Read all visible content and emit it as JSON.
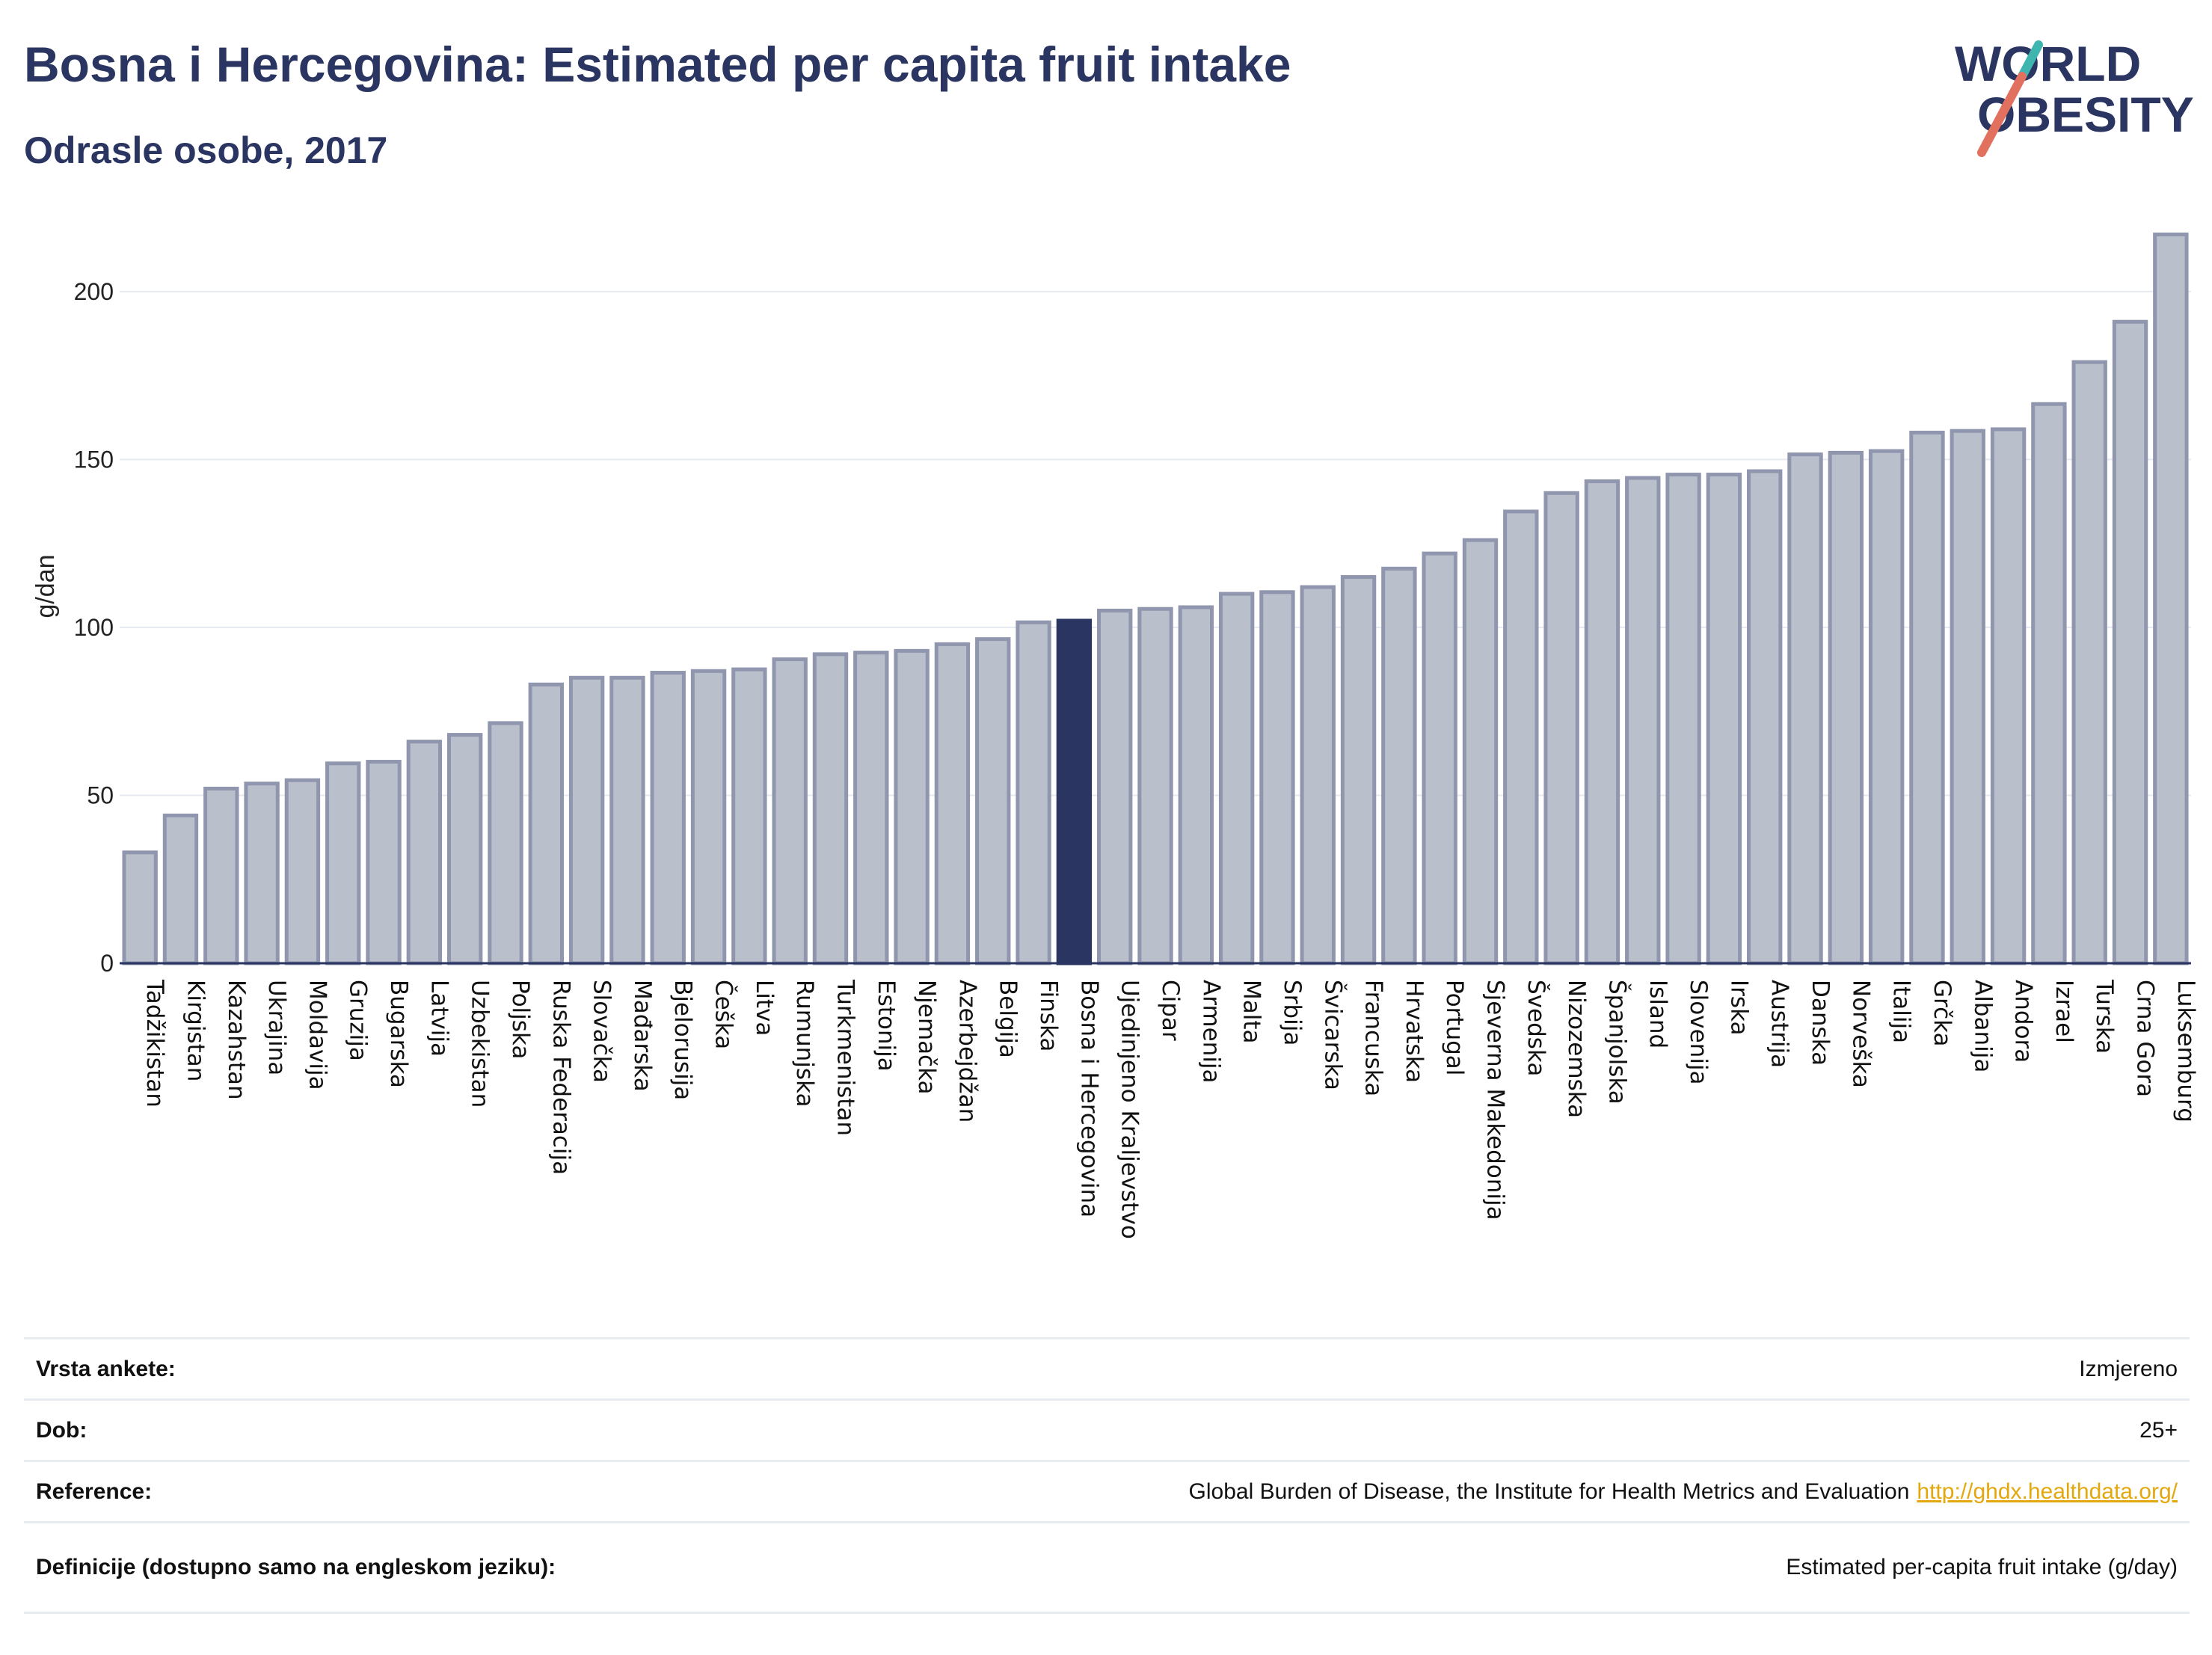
{
  "header": {
    "title": "Bosna i Hercegovina: Estimated per capita fruit intake",
    "subtitle": "Odrasle osobe, 2017"
  },
  "logo": {
    "line1": "WORLD",
    "line2": "OBESITY",
    "colors": {
      "text": "#2a3561",
      "slash_red": "#e2705f",
      "slash_teal": "#3fb5b0"
    }
  },
  "colors": {
    "bar": "#babfcc",
    "bar_stroke": "#8f96ad",
    "highlight": "#2a3561",
    "grid": "#e6eaf0",
    "axis": "#2a3561"
  },
  "chart_data": {
    "type": "bar",
    "ylabel": "g/dan",
    "xlabel": "",
    "ylim": [
      0,
      220
    ],
    "yticks": [
      0,
      50,
      100,
      150,
      200
    ],
    "grid": true,
    "highlight_category": "Bosna i Hercegovina",
    "categories": [
      "Tadžikistan",
      "Kirgistan",
      "Kazahstan",
      "Ukrajina",
      "Moldavija",
      "Gruzija",
      "Bugarska",
      "Latvija",
      "Uzbekistan",
      "Poljska",
      "Ruska Federacija",
      "Slovačka",
      "Mađarska",
      "Bjelorusija",
      "Češka",
      "Litva",
      "Rumunjska",
      "Turkmenistan",
      "Estonija",
      "Njemačka",
      "Azerbejdžan",
      "Belgija",
      "Finska",
      "Bosna i Hercegovina",
      "Ujedinjeno Kraljevstvo",
      "Cipar",
      "Armenija",
      "Malta",
      "Srbija",
      "Švicarska",
      "Francuska",
      "Hrvatska",
      "Portugal",
      "Sjeverna Makedonija",
      "Švedska",
      "Nizozemska",
      "Španjolska",
      "Island",
      "Slovenija",
      "Irska",
      "Austrija",
      "Danska",
      "Norveška",
      "Italija",
      "Grčka",
      "Albanija",
      "Andora",
      "Izrael",
      "Turska",
      "Crna Gora",
      "Luksemburg"
    ],
    "values": [
      33,
      44,
      52,
      53.5,
      54.5,
      59.5,
      60,
      66,
      68,
      71.5,
      83,
      85,
      85,
      86.5,
      87,
      87.5,
      90.5,
      92,
      92.5,
      93,
      95,
      96.5,
      101.5,
      102,
      105,
      105.5,
      106,
      110,
      110.5,
      112,
      115,
      117.5,
      122,
      126,
      134.5,
      140,
      143.5,
      144.5,
      145.5,
      145.5,
      146.5,
      151.5,
      152,
      152.5,
      158,
      158.5,
      159,
      166.5,
      179,
      191,
      217
    ]
  },
  "info": {
    "rows": [
      {
        "label": "Vrsta ankete:",
        "value": "Izmjereno"
      },
      {
        "label": "Dob:",
        "value": "25+"
      },
      {
        "label": "Reference:",
        "value": "Global Burden of Disease, the Institute for Health Metrics and Evaluation",
        "link": "http://ghdx.healthdata.org/"
      },
      {
        "label": "Definicije (dostupno samo na engleskom jeziku):",
        "value": "Estimated per-capita fruit intake (g/day)"
      }
    ]
  }
}
